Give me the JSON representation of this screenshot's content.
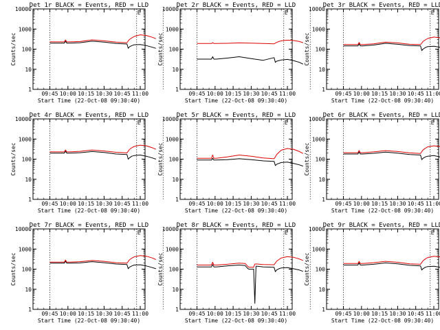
{
  "colors": {
    "events": "#000000",
    "lld": "#dd0000",
    "axes": "#000000"
  },
  "chart_data": [
    {
      "type": "line",
      "title": "Det 1r BLACK = Events, RED = LLD",
      "xlabel": "Start Time (22-Oct-08 09:30:40)",
      "ylabel": "Counts/sec",
      "scale": "log",
      "x_ticks": [
        "09:45",
        "10:00",
        "10:15",
        "10:30",
        "10:45",
        "11:00"
      ],
      "y_ticks": [
        "1",
        "10",
        "100",
        "1000",
        "10000"
      ],
      "marker_label": "E",
      "series": [
        {
          "color": "#000000",
          "x": [
            30,
            42,
            43,
            44,
            46,
            55,
            65,
            75,
            85,
            94,
            95,
            96,
            98,
            100,
            105,
            110,
            115,
            118
          ],
          "y": [
            200,
            200,
            250,
            200,
            200,
            210,
            250,
            225,
            190,
            180,
            110,
            130,
            150,
            165,
            170,
            150,
            125,
            110
          ]
        },
        {
          "color": "#dd0000",
          "x": [
            30,
            42,
            43,
            44,
            46,
            55,
            65,
            75,
            85,
            94,
            95,
            96,
            98,
            100,
            105,
            110,
            115,
            118
          ],
          "y": [
            230,
            230,
            290,
            230,
            230,
            240,
            290,
            260,
            225,
            210,
            260,
            300,
            360,
            430,
            520,
            480,
            390,
            330
          ]
        }
      ]
    },
    {
      "type": "line",
      "title": "Det 2r BLACK = Events, RED = LLD",
      "xlabel": "Start Time (22-Oct-08 09:30:40)",
      "ylabel": "Counts/sec",
      "scale": "log",
      "x_ticks": [
        "09:45",
        "10:00",
        "10:15",
        "10:30",
        "10:45",
        "11:00"
      ],
      "y_ticks": [
        "1",
        "10",
        "100",
        "1000",
        "10000"
      ],
      "marker_label": "E",
      "series": [
        {
          "color": "#000000",
          "x": [
            30,
            42,
            43,
            44,
            46,
            55,
            65,
            75,
            85,
            94,
            95,
            96,
            98,
            100,
            105,
            110,
            115,
            118
          ],
          "y": [
            32,
            32,
            42,
            32,
            32,
            36,
            42,
            34,
            28,
            38,
            22,
            25,
            27,
            29,
            31,
            27,
            22,
            18
          ]
        },
        {
          "color": "#dd0000",
          "x": [
            30,
            42,
            43,
            44,
            46,
            55,
            65,
            75,
            85,
            94,
            95,
            96,
            98,
            100,
            105,
            110,
            115,
            118
          ],
          "y": [
            190,
            190,
            210,
            190,
            190,
            195,
            205,
            200,
            190,
            185,
            200,
            215,
            240,
            260,
            280,
            270,
            240,
            210
          ]
        }
      ]
    },
    {
      "type": "line",
      "title": "Det 3r BLACK = Events, RED = LLD",
      "xlabel": "Start Time (22-Oct-08 09:30:40)",
      "ylabel": "Counts/sec",
      "scale": "log",
      "x_ticks": [
        "09:45",
        "10:00",
        "10:15",
        "10:30",
        "10:45",
        "11:00"
      ],
      "y_ticks": [
        "1",
        "10",
        "100",
        "1000",
        "10000"
      ],
      "marker_label": "E",
      "series": [
        {
          "color": "#000000",
          "x": [
            30,
            42,
            43,
            44,
            46,
            55,
            65,
            75,
            85,
            94,
            95,
            96,
            98,
            100,
            105,
            110,
            115,
            118
          ],
          "y": [
            145,
            145,
            185,
            145,
            145,
            160,
            195,
            175,
            150,
            145,
            85,
            100,
            120,
            135,
            140,
            125,
            105,
            90
          ]
        },
        {
          "color": "#dd0000",
          "x": [
            30,
            42,
            43,
            44,
            46,
            55,
            65,
            75,
            85,
            94,
            95,
            96,
            98,
            100,
            105,
            110,
            115,
            118
          ],
          "y": [
            170,
            170,
            215,
            170,
            170,
            185,
            225,
            205,
            175,
            170,
            200,
            240,
            290,
            340,
            400,
            370,
            300,
            250
          ]
        }
      ]
    },
    {
      "type": "line",
      "title": "Det 4r BLACK = Events, RED = LLD",
      "xlabel": "Start Time (22-Oct-08 09:30:40)",
      "ylabel": "Counts/sec",
      "scale": "log",
      "x_ticks": [
        "09:45",
        "10:00",
        "10:15",
        "10:30",
        "10:45",
        "11:00"
      ],
      "y_ticks": [
        "1",
        "10",
        "100",
        "1000",
        "10000"
      ],
      "marker_label": "E",
      "series": [
        {
          "color": "#000000",
          "x": [
            30,
            42,
            43,
            44,
            46,
            55,
            65,
            75,
            85,
            94,
            95,
            96,
            98,
            100,
            105,
            110,
            115,
            118
          ],
          "y": [
            200,
            200,
            250,
            200,
            200,
            210,
            240,
            215,
            180,
            170,
            100,
            115,
            140,
            150,
            160,
            140,
            115,
            100
          ]
        },
        {
          "color": "#dd0000",
          "x": [
            30,
            42,
            43,
            44,
            46,
            55,
            65,
            75,
            85,
            94,
            95,
            96,
            98,
            100,
            105,
            110,
            115,
            118
          ],
          "y": [
            230,
            230,
            290,
            230,
            230,
            245,
            285,
            255,
            220,
            205,
            250,
            300,
            370,
            430,
            500,
            460,
            370,
            310
          ]
        }
      ]
    },
    {
      "type": "line",
      "title": "Det 5r BLACK = Events, RED = LLD",
      "xlabel": "Start Time (22-Oct-08 09:30:40)",
      "ylabel": "Counts/sec",
      "scale": "log",
      "x_ticks": [
        "09:45",
        "10:00",
        "10:15",
        "10:30",
        "10:45",
        "11:00"
      ],
      "y_ticks": [
        "1",
        "10",
        "100",
        "1000",
        "10000"
      ],
      "marker_label": "E",
      "series": [
        {
          "color": "#000000",
          "x": [
            30,
            42,
            43,
            44,
            46,
            55,
            65,
            75,
            85,
            94,
            95,
            96,
            98,
            100,
            105,
            110,
            115,
            118
          ],
          "y": [
            90,
            90,
            110,
            90,
            90,
            95,
            105,
            95,
            82,
            78,
            48,
            55,
            62,
            68,
            72,
            62,
            52,
            45
          ]
        },
        {
          "color": "#dd0000",
          "x": [
            30,
            42,
            43,
            44,
            46,
            55,
            65,
            75,
            85,
            94,
            95,
            96,
            98,
            100,
            105,
            110,
            115,
            118
          ],
          "y": [
            110,
            110,
            160,
            110,
            110,
            130,
            160,
            140,
            115,
            105,
            130,
            165,
            220,
            280,
            340,
            310,
            240,
            190
          ]
        }
      ]
    },
    {
      "type": "line",
      "title": "Det 6r BLACK = Events, RED = LLD",
      "xlabel": "Start Time (22-Oct-08 09:30:40)",
      "ylabel": "Counts/sec",
      "scale": "log",
      "x_ticks": [
        "09:45",
        "10:00",
        "10:15",
        "10:30",
        "10:45",
        "11:00"
      ],
      "y_ticks": [
        "1",
        "10",
        "100",
        "1000",
        "10000"
      ],
      "marker_label": "E",
      "series": [
        {
          "color": "#000000",
          "x": [
            30,
            42,
            43,
            44,
            46,
            55,
            65,
            75,
            85,
            94,
            95,
            96,
            98,
            100,
            105,
            110,
            115,
            118
          ],
          "y": [
            180,
            180,
            230,
            180,
            180,
            195,
            225,
            200,
            170,
            160,
            95,
            110,
            130,
            140,
            150,
            130,
            110,
            95
          ]
        },
        {
          "color": "#dd0000",
          "x": [
            30,
            42,
            43,
            44,
            46,
            55,
            65,
            75,
            85,
            94,
            95,
            96,
            98,
            100,
            105,
            110,
            115,
            118
          ],
          "y": [
            210,
            210,
            270,
            210,
            210,
            230,
            265,
            240,
            205,
            190,
            235,
            285,
            350,
            410,
            460,
            430,
            350,
            290
          ]
        }
      ]
    },
    {
      "type": "line",
      "title": "Det 7r BLACK = Events, RED = LLD",
      "xlabel": "Start Time (22-Oct-08 09:30:40)",
      "ylabel": "Counts/sec",
      "scale": "log",
      "x_ticks": [
        "09:45",
        "10:00",
        "10:15",
        "10:30",
        "10:45",
        "11:00"
      ],
      "y_ticks": [
        "1",
        "10",
        "100",
        "1000",
        "10000"
      ],
      "marker_label": "E",
      "series": [
        {
          "color": "#000000",
          "x": [
            30,
            42,
            43,
            44,
            46,
            55,
            65,
            75,
            85,
            94,
            95,
            96,
            98,
            100,
            105,
            110,
            115,
            118
          ],
          "y": [
            200,
            200,
            250,
            200,
            200,
            205,
            235,
            210,
            180,
            170,
            105,
            125,
            145,
            160,
            165,
            145,
            120,
            105
          ]
        },
        {
          "color": "#dd0000",
          "x": [
            30,
            42,
            43,
            44,
            46,
            55,
            65,
            75,
            85,
            94,
            95,
            96,
            98,
            100,
            105,
            110,
            115,
            118
          ],
          "y": [
            225,
            225,
            285,
            225,
            225,
            235,
            270,
            245,
            210,
            200,
            240,
            290,
            350,
            410,
            470,
            440,
            360,
            300
          ]
        }
      ]
    },
    {
      "type": "line",
      "title": "Det 8r BLACK = Events, RED = LLD",
      "xlabel": "Start Time (22-Oct-08 09:30:40)",
      "ylabel": "Counts/sec",
      "scale": "log",
      "x_ticks": [
        "09:45",
        "10:00",
        "10:15",
        "10:30",
        "10:45",
        "11:00"
      ],
      "y_ticks": [
        "1",
        "10",
        "100",
        "1000",
        "10000"
      ],
      "marker_label": "E",
      "series": [
        {
          "color": "#000000",
          "x": [
            30,
            42,
            43,
            44,
            46,
            55,
            65,
            70,
            72,
            73,
            77,
            78,
            79,
            80,
            85,
            94,
            95,
            96,
            98,
            100,
            105,
            110,
            115,
            118
          ],
          "y": [
            130,
            130,
            170,
            130,
            130,
            145,
            160,
            150,
            110,
            100,
            100,
            2,
            140,
            140,
            130,
            125,
            75,
            90,
            105,
            115,
            120,
            105,
            90,
            78
          ]
        },
        {
          "color": "#dd0000",
          "x": [
            30,
            42,
            43,
            44,
            46,
            55,
            65,
            70,
            72,
            73,
            77,
            78,
            79,
            80,
            85,
            94,
            95,
            96,
            98,
            100,
            105,
            110,
            115,
            118
          ],
          "y": [
            160,
            160,
            220,
            160,
            160,
            175,
            200,
            190,
            140,
            125,
            125,
            180,
            180,
            180,
            170,
            165,
            200,
            245,
            300,
            360,
            420,
            390,
            320,
            270
          ]
        }
      ]
    },
    {
      "type": "line",
      "title": "Det 9r BLACK = Events, RED = LLD",
      "xlabel": "Start Time (22-Oct-08 09:30:40)",
      "ylabel": "Counts/sec",
      "scale": "log",
      "x_ticks": [
        "09:45",
        "10:00",
        "10:15",
        "10:30",
        "10:45",
        "11:00"
      ],
      "y_ticks": [
        "1",
        "10",
        "100",
        "1000",
        "10000"
      ],
      "marker_label": "E",
      "series": [
        {
          "color": "#000000",
          "x": [
            30,
            42,
            43,
            44,
            46,
            55,
            65,
            75,
            85,
            94,
            95,
            96,
            98,
            100,
            105,
            110,
            115,
            118
          ],
          "y": [
            160,
            160,
            205,
            160,
            160,
            175,
            205,
            185,
            155,
            145,
            90,
            105,
            125,
            135,
            140,
            125,
            105,
            90
          ]
        },
        {
          "color": "#dd0000",
          "x": [
            30,
            42,
            43,
            44,
            46,
            55,
            65,
            75,
            85,
            94,
            95,
            96,
            98,
            100,
            105,
            110,
            115,
            118
          ],
          "y": [
            190,
            190,
            245,
            190,
            190,
            210,
            245,
            220,
            185,
            175,
            215,
            260,
            320,
            380,
            440,
            410,
            330,
            270
          ]
        }
      ]
    }
  ]
}
